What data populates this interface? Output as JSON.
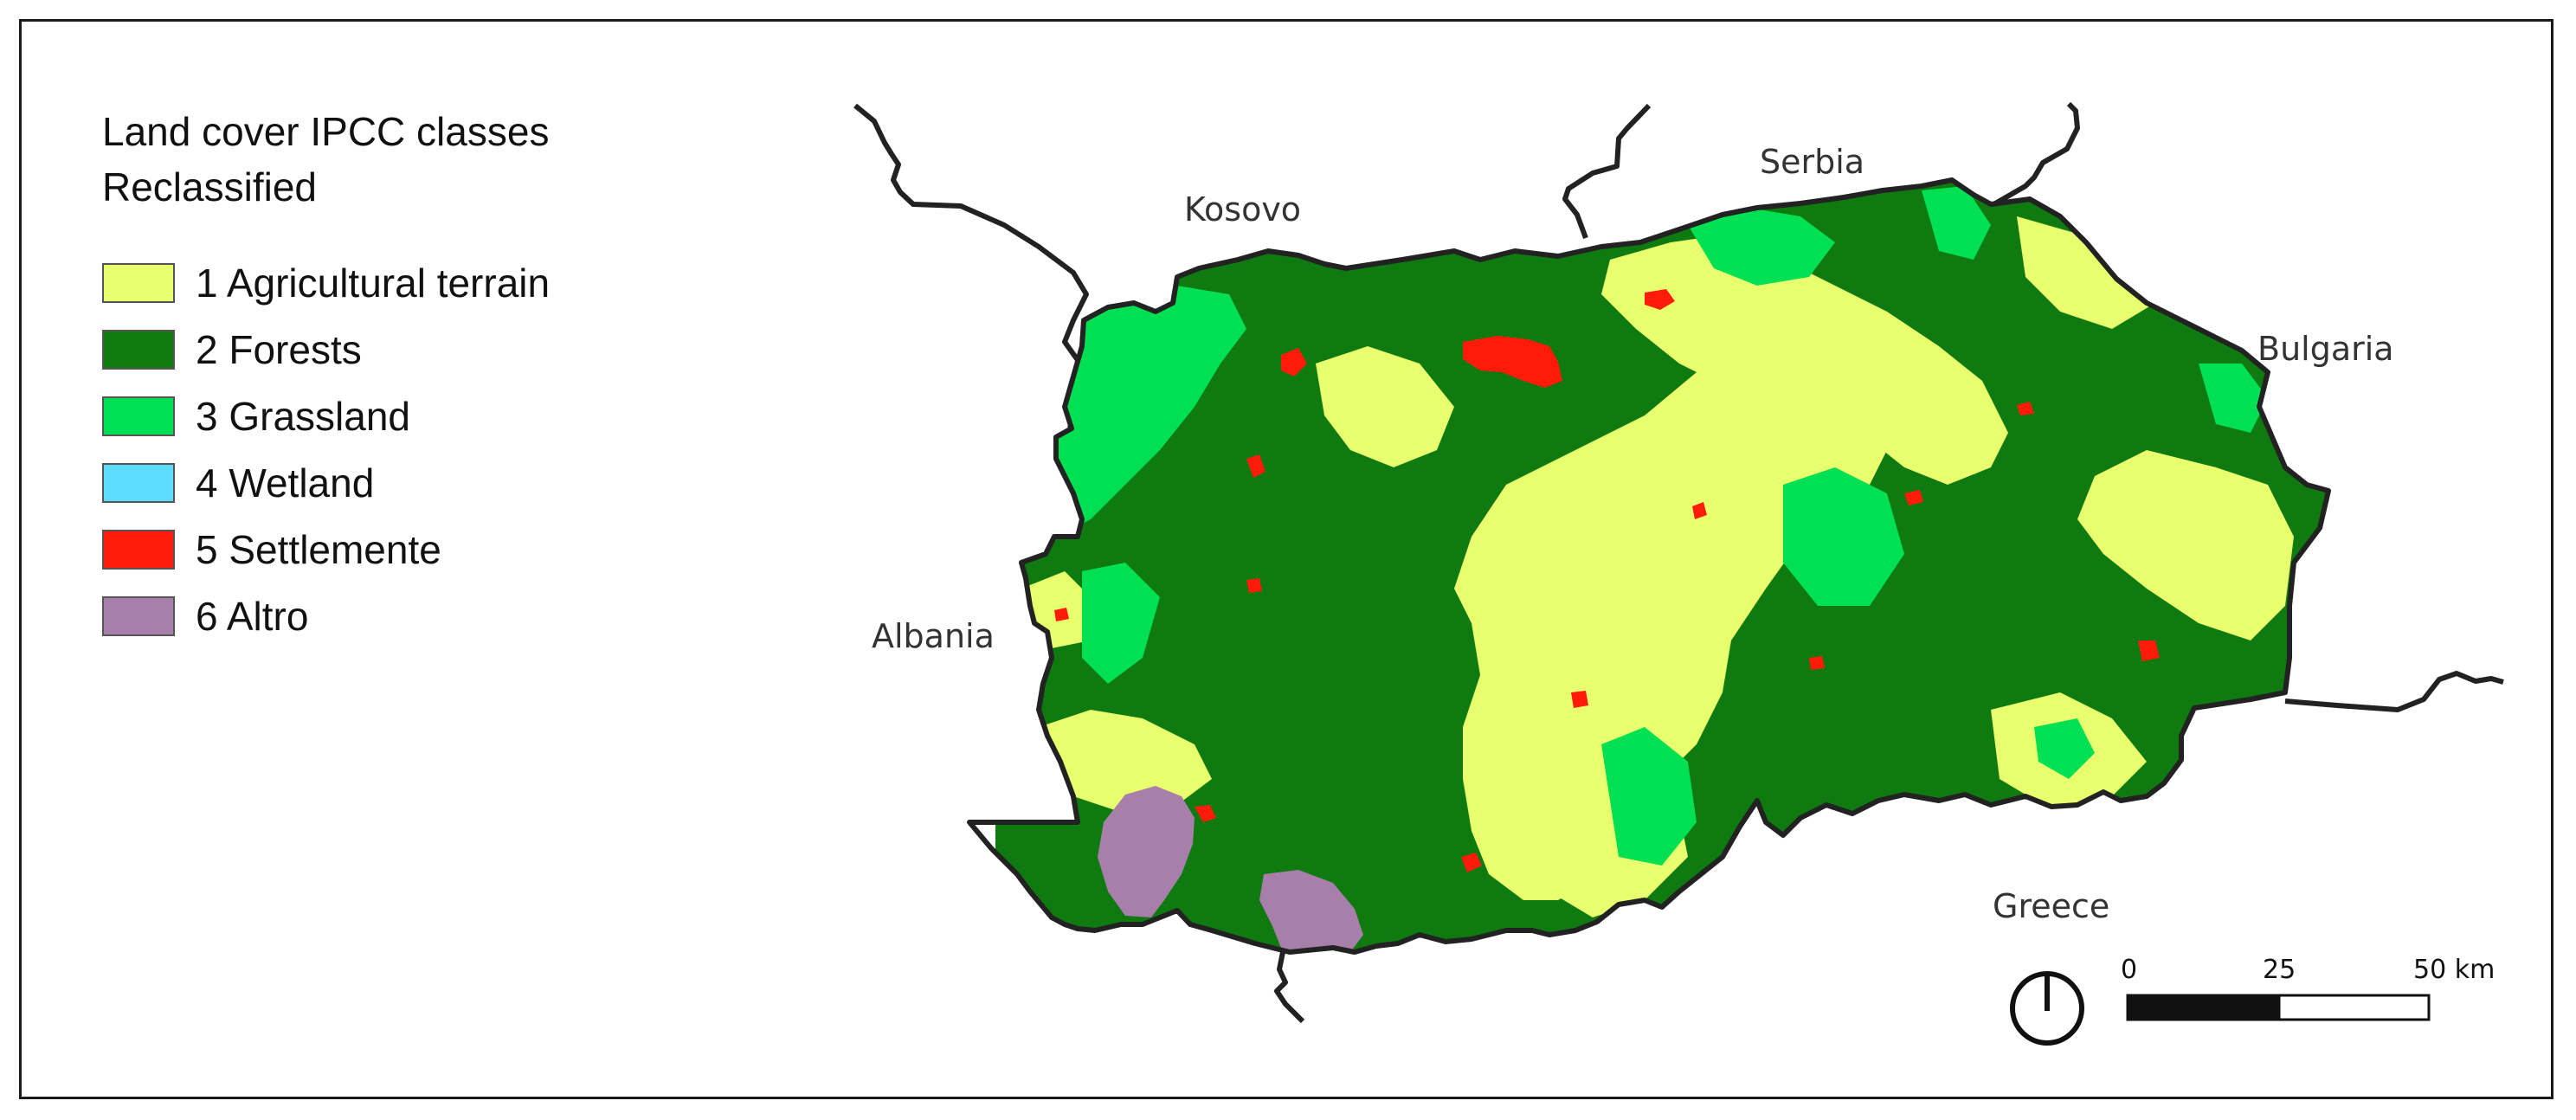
{
  "legend": {
    "title_line1": "Land cover IPCC classes",
    "title_line2": "Reclassified",
    "items": [
      {
        "label": "1 Agricultural terrain",
        "color": "#e8ff6e"
      },
      {
        "label": "2 Forests",
        "color": "#0f7a0f"
      },
      {
        "label": "3 Grassland",
        "color": "#00e052"
      },
      {
        "label": "4 Wetland",
        "color": "#5cdcff"
      },
      {
        "label": "5 Settlemente",
        "color": "#ff1a0a"
      },
      {
        "label": "6 Altro",
        "color": "#a87eab"
      }
    ]
  },
  "labels": {
    "kosovo": "Kosovo",
    "serbia": "Serbia",
    "bulgaria": "Bulgaria",
    "albania": "Albania",
    "greece": "Greece"
  },
  "scale": {
    "tick0": "0",
    "tick1": "25",
    "tick2": "50 km"
  },
  "north_arrow_icon": "north-arrow-icon"
}
